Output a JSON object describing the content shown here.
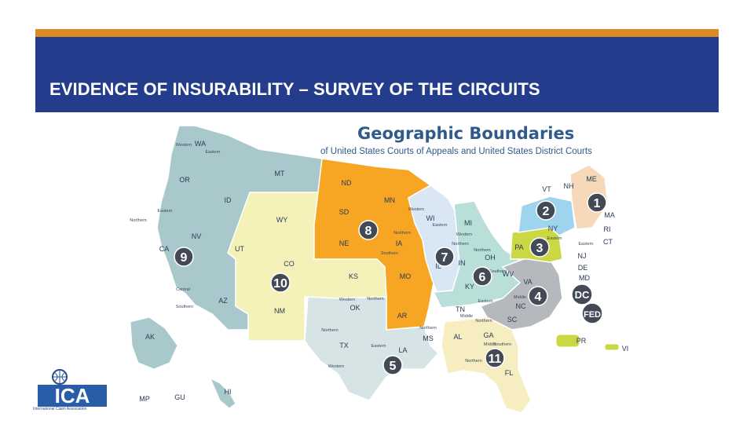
{
  "slide": {
    "title": "EVIDENCE OF INSURABILITY – SURVEY OF THE CIRCUITS"
  },
  "map": {
    "heading": "Geographic Boundaries",
    "subheading": "of United States Courts of Appeals and United States District Courts",
    "colors": {
      "first_circuit": "#f5d9b8",
      "second_circuit": "#9fd4ee",
      "third_circuit": "#c9d843",
      "fourth_circuit": "#b5b8bd",
      "fifth_circuit": "#d6e4e6",
      "sixth_circuit": "#b9e0d8",
      "seventh_circuit": "#d9e7f5",
      "eighth_circuit": "#f6a623",
      "ninth_circuit": "#a9c8cc",
      "tenth_circuit": "#f4f2b8",
      "eleventh_circuit": "#f6eec0",
      "dc_marker": "#2f5a8a"
    },
    "circuit_markers": [
      "1",
      "2",
      "3",
      "4",
      "5",
      "6",
      "7",
      "8",
      "9",
      "10",
      "11"
    ],
    "special_markers": [
      "DC",
      "FED"
    ],
    "state_labels": [
      "WA",
      "OR",
      "ID",
      "MT",
      "WY",
      "NV",
      "CA",
      "UT",
      "CO",
      "AZ",
      "NM",
      "ND",
      "SD",
      "NE",
      "KS",
      "OK",
      "TX",
      "MN",
      "IA",
      "MO",
      "AR",
      "LA",
      "WI",
      "IL",
      "MI",
      "IN",
      "OH",
      "KY",
      "TN",
      "MS",
      "AL",
      "GA",
      "FL",
      "SC",
      "NC",
      "VA",
      "WV",
      "PA",
      "NY",
      "VT",
      "NH",
      "ME",
      "MA",
      "RI",
      "CT",
      "NJ",
      "DE",
      "MD",
      "AK",
      "HI",
      "PR",
      "VI",
      "MP",
      "GU"
    ],
    "district_labels": [
      "Western",
      "Eastern",
      "Northern",
      "Southern",
      "Central",
      "Middle"
    ]
  },
  "logo": {
    "text": "ICA",
    "tagline": "International Claim Association"
  }
}
